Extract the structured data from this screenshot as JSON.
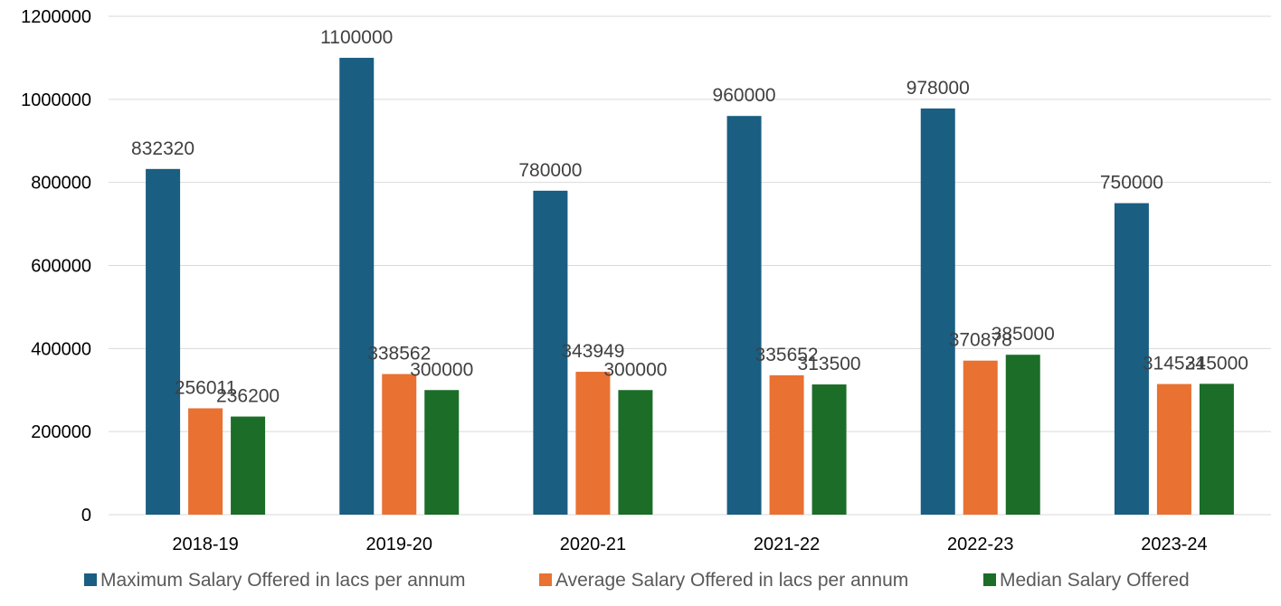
{
  "chart_data": {
    "type": "bar",
    "categories": [
      "2018-19",
      "2019-20",
      "2020-21",
      "2021-22",
      "2022-23",
      "2023-24"
    ],
    "series": [
      {
        "name": "Maximum Salary Offered in lacs per annum",
        "color": "#1a5e82",
        "values": [
          832320,
          1100000,
          780000,
          960000,
          978000,
          750000
        ]
      },
      {
        "name": "Average Salary Offered in lacs per annum",
        "color": "#e97132",
        "values": [
          256011,
          338562,
          343949,
          335652,
          370878,
          314524
        ]
      },
      {
        "name": "Median Salary Offered",
        "color": "#1b6d28",
        "values": [
          236200,
          300000,
          300000,
          313500,
          385000,
          315000
        ]
      }
    ],
    "title": "",
    "xlabel": "",
    "ylabel": "",
    "ylim": [
      0,
      1200000
    ],
    "yticks": [
      0,
      200000,
      400000,
      600000,
      800000,
      1000000,
      1200000
    ],
    "grid": true,
    "legend_position": "bottom",
    "data_labels": true
  }
}
